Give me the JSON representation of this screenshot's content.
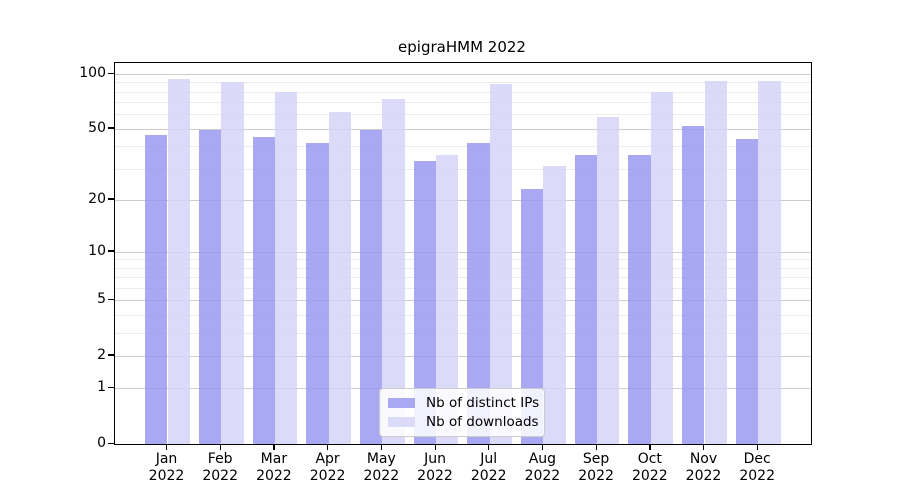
{
  "title": "epigraHMM 2022",
  "chart_data": {
    "type": "bar",
    "title": "epigraHMM 2022",
    "categories": [
      "Jan 2022",
      "Feb 2022",
      "Mar 2022",
      "Apr 2022",
      "May 2022",
      "Jun 2022",
      "Jul 2022",
      "Aug 2022",
      "Sep 2022",
      "Oct 2022",
      "Nov 2022",
      "Dec 2022"
    ],
    "series": [
      {
        "name": "Nb of distinct IPs",
        "color": "rgba(150,150,240,0.82)",
        "values": [
          46,
          49,
          45,
          42,
          49,
          33,
          42,
          23,
          36,
          36,
          52,
          44
        ]
      },
      {
        "name": "Nb of downloads",
        "color": "rgba(211,211,248,0.82)",
        "values": [
          94,
          91,
          80,
          62,
          73,
          36,
          88,
          31,
          58,
          80,
          92,
          92
        ]
      }
    ],
    "xlabel": "",
    "ylabel": "",
    "yscale": "log1p",
    "ylim": [
      0,
      115
    ],
    "yticks": [
      0,
      1,
      2,
      5,
      10,
      20,
      50,
      100
    ],
    "minor_yticks": [
      3,
      4,
      6,
      7,
      8,
      9,
      30,
      40,
      60,
      70,
      80,
      90
    ],
    "grid": "horizontal",
    "legend_position": "lower center"
  },
  "legend": {
    "items": [
      {
        "label": "Nb of distinct IPs",
        "swatch_color": "rgba(150,150,240,0.82)"
      },
      {
        "label": "Nb of downloads",
        "swatch_color": "rgba(211,211,248,0.82)"
      }
    ]
  },
  "colors": {
    "background": "#ffffff",
    "axis": "#000000",
    "text": "#000000",
    "grid_major": "#cdcdcd",
    "grid_minor": "#ececec",
    "bar_distinct_ips": "rgba(150,150,240,0.82)",
    "bar_downloads": "rgba(211,211,248,0.82)"
  }
}
